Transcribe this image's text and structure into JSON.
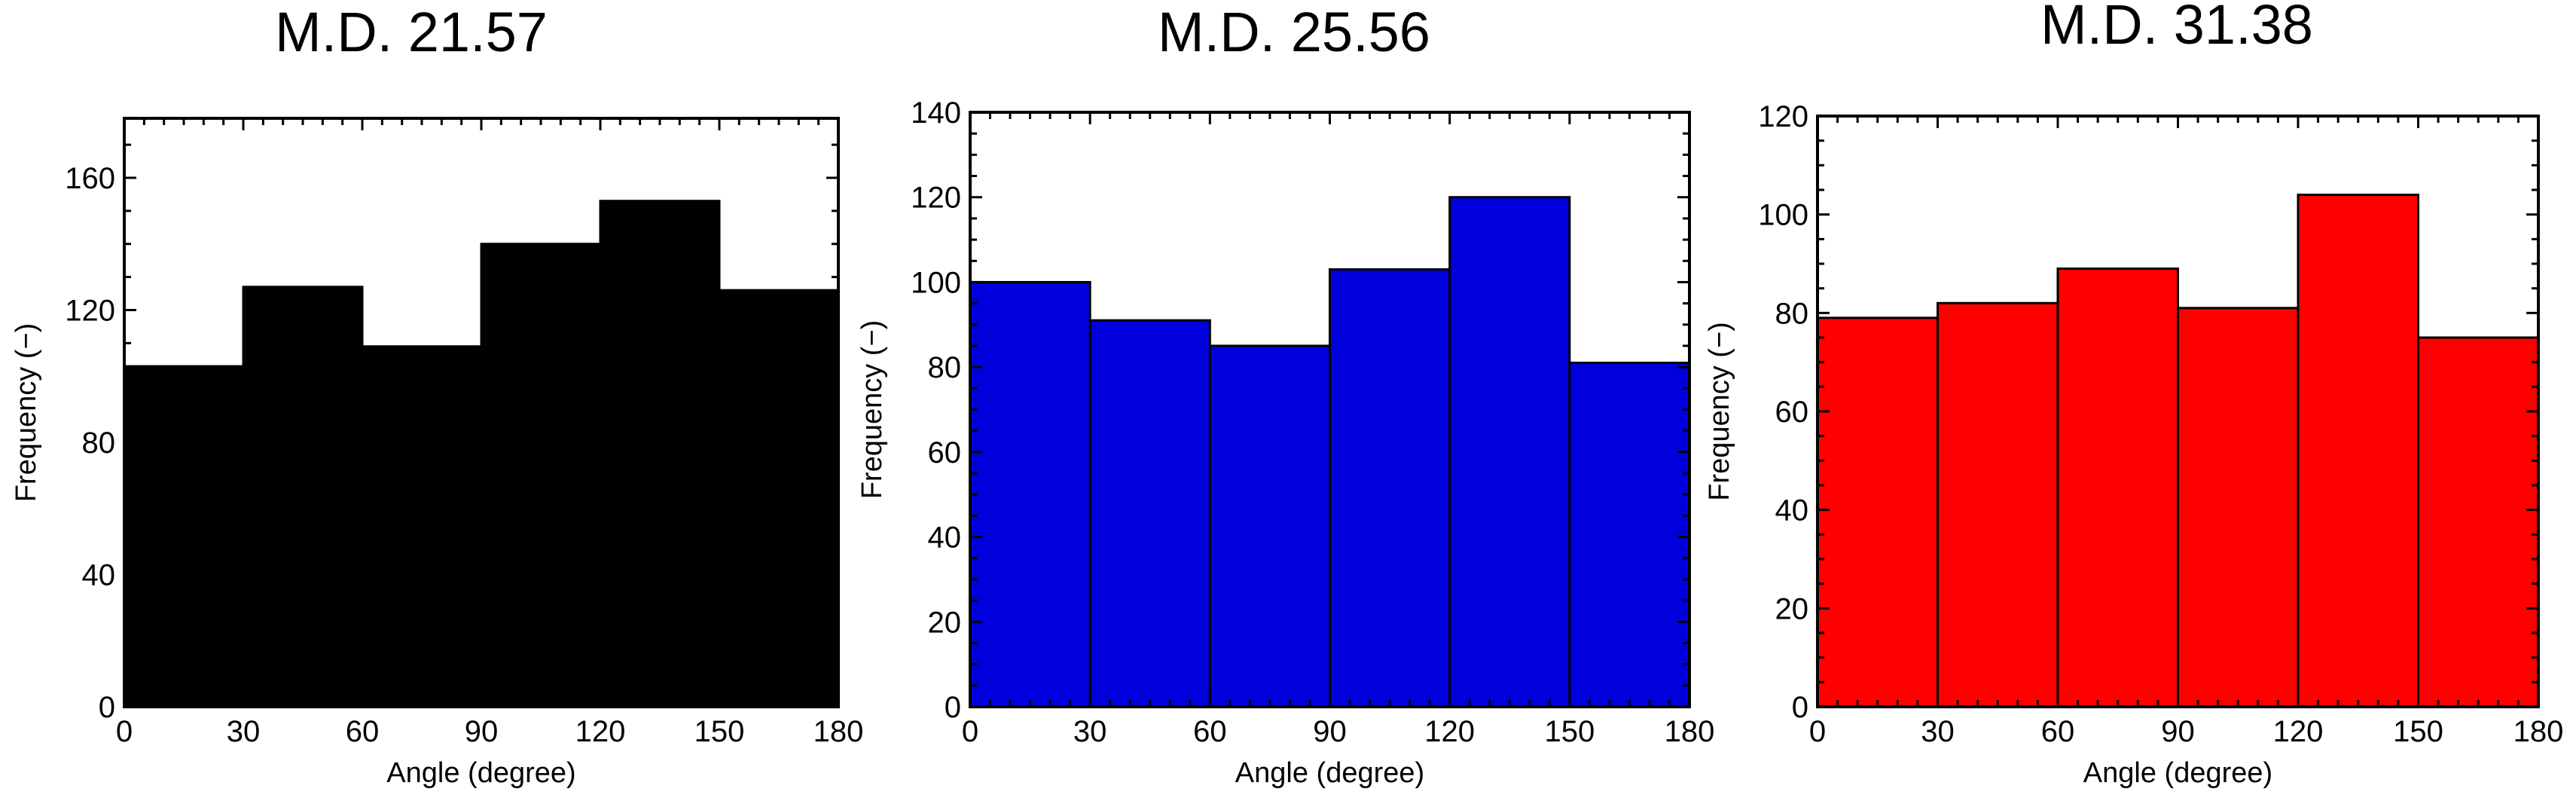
{
  "chart_data": [
    {
      "type": "bar",
      "title": "M.D. 21.57",
      "xlabel": "Angle (degree)",
      "ylabel": "Frequency (−)",
      "bin_edges": [
        0,
        30,
        60,
        90,
        120,
        150,
        180
      ],
      "values": [
        103,
        127,
        109,
        140,
        153,
        126
      ],
      "xlim": [
        0,
        180
      ],
      "ylim": [
        0,
        178
      ],
      "xticks": [
        0,
        30,
        60,
        90,
        120,
        150,
        180
      ],
      "yticks": [
        0,
        40,
        80,
        120,
        160
      ],
      "bar_color": "#000000",
      "bar_edge_color": "#000000",
      "grid": false
    },
    {
      "type": "bar",
      "title": "M.D. 25.56",
      "xlabel": "Angle (degree)",
      "ylabel": "Frequency (−)",
      "bin_edges": [
        0,
        30,
        60,
        90,
        120,
        150,
        180
      ],
      "values": [
        100,
        91,
        85,
        103,
        120,
        81
      ],
      "xlim": [
        0,
        180
      ],
      "ylim": [
        0,
        140
      ],
      "xticks": [
        0,
        30,
        60,
        90,
        120,
        150,
        180
      ],
      "yticks": [
        0,
        20,
        40,
        60,
        80,
        100,
        120,
        140
      ],
      "bar_color": "#0000dd",
      "bar_edge_color": "#000000",
      "grid": false
    },
    {
      "type": "bar",
      "title": "M.D. 31.38",
      "xlabel": "Angle (degree)",
      "ylabel": "Frequency (−)",
      "bin_edges": [
        0,
        30,
        60,
        90,
        120,
        150,
        180
      ],
      "values": [
        79,
        82,
        89,
        81,
        104,
        75
      ],
      "xlim": [
        0,
        180
      ],
      "ylim": [
        0,
        120
      ],
      "xticks": [
        0,
        30,
        60,
        90,
        120,
        150,
        180
      ],
      "yticks": [
        0,
        20,
        40,
        60,
        80,
        100,
        120
      ],
      "bar_color": "#ff0000",
      "bar_edge_color": "#000000",
      "grid": false
    }
  ]
}
